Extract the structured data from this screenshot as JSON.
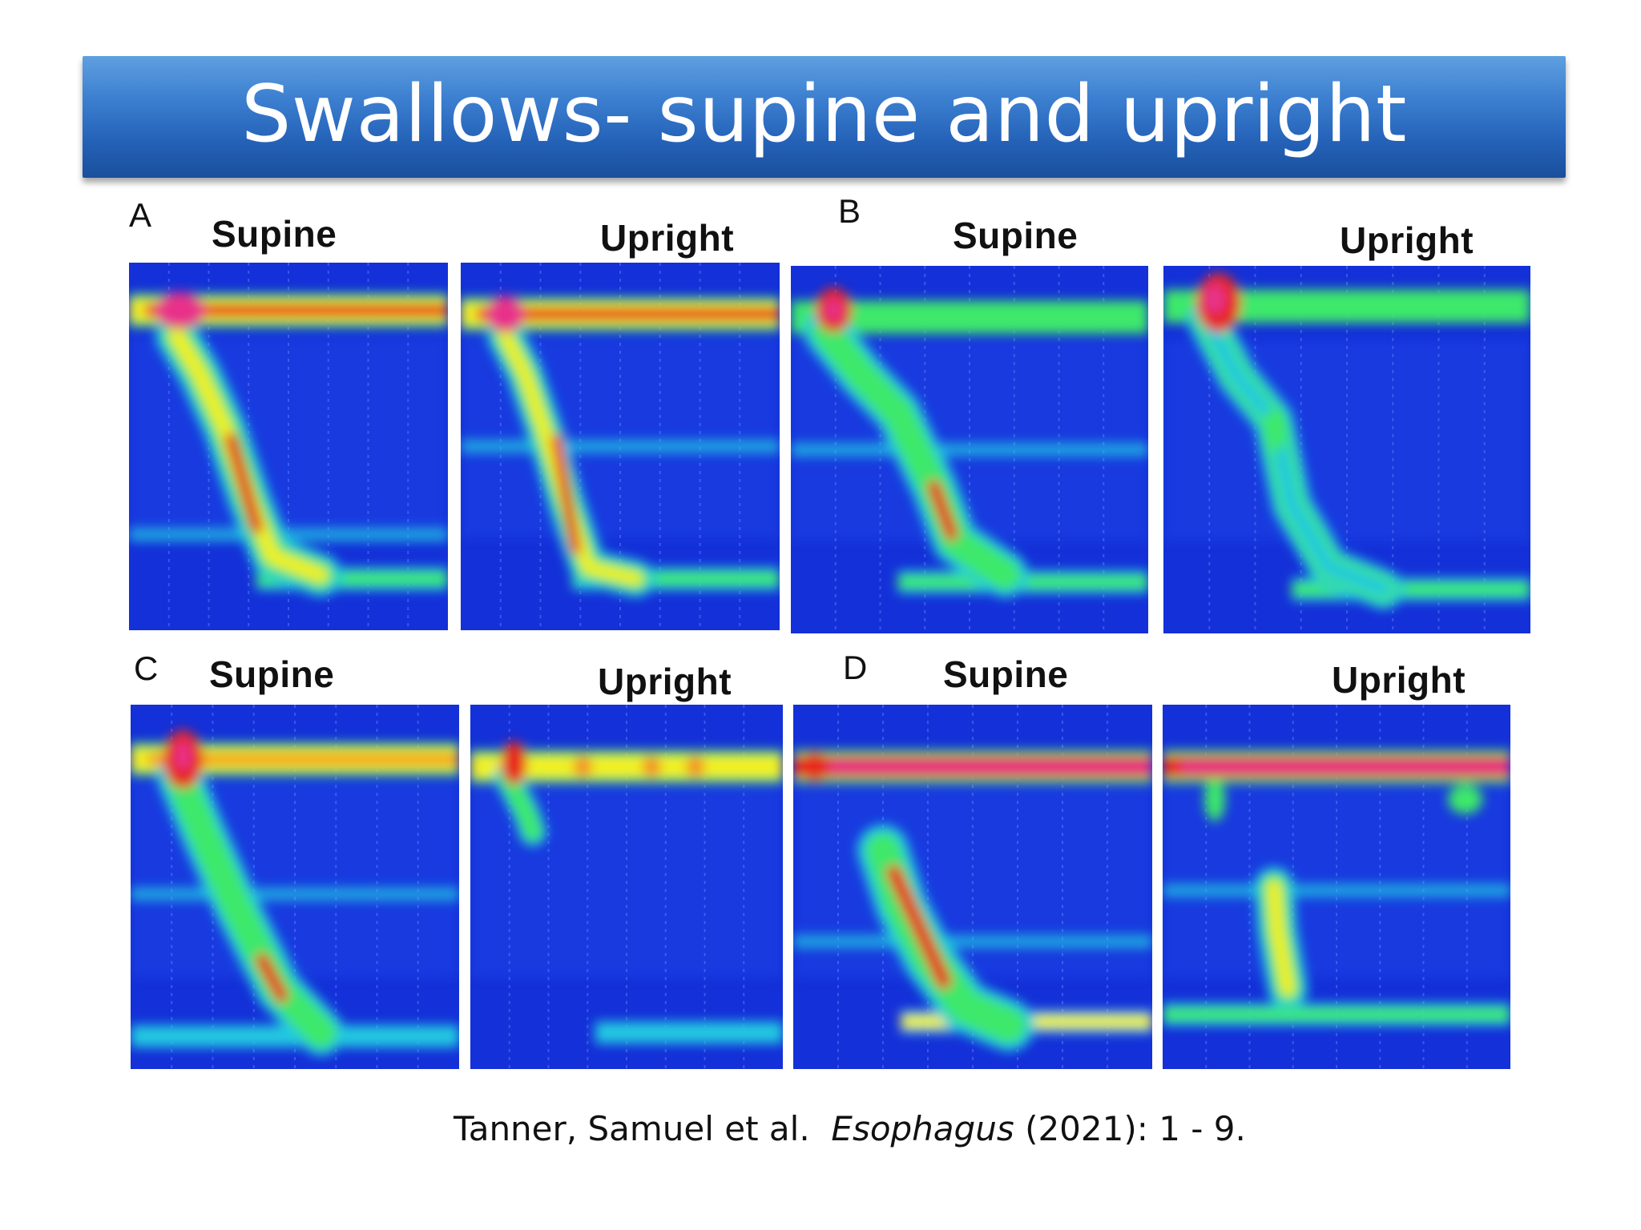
{
  "title": "Swallows- supine and upright",
  "panels": [
    {
      "letter": "A",
      "left_label": "Supine",
      "right_label": "Upright"
    },
    {
      "letter": "B",
      "left_label": "Supine",
      "right_label": "Upright"
    },
    {
      "letter": "C",
      "left_label": "Supine",
      "right_label": "Upright"
    },
    {
      "letter": "D",
      "left_label": "Supine",
      "right_label": "Upright"
    }
  ],
  "citation": {
    "authors": "Tanner, Samuel et al.",
    "journal": "Esophagus",
    "rest": "(2021): 1 - 9."
  },
  "colors": {
    "title_bar": "#2a66bb",
    "map_background": "#1430d8",
    "map_low": "#22c8e0",
    "map_mid": "#3ee86a",
    "map_high": "#f2f020",
    "map_peak": "#e8261a",
    "map_max": "#e8308a"
  }
}
